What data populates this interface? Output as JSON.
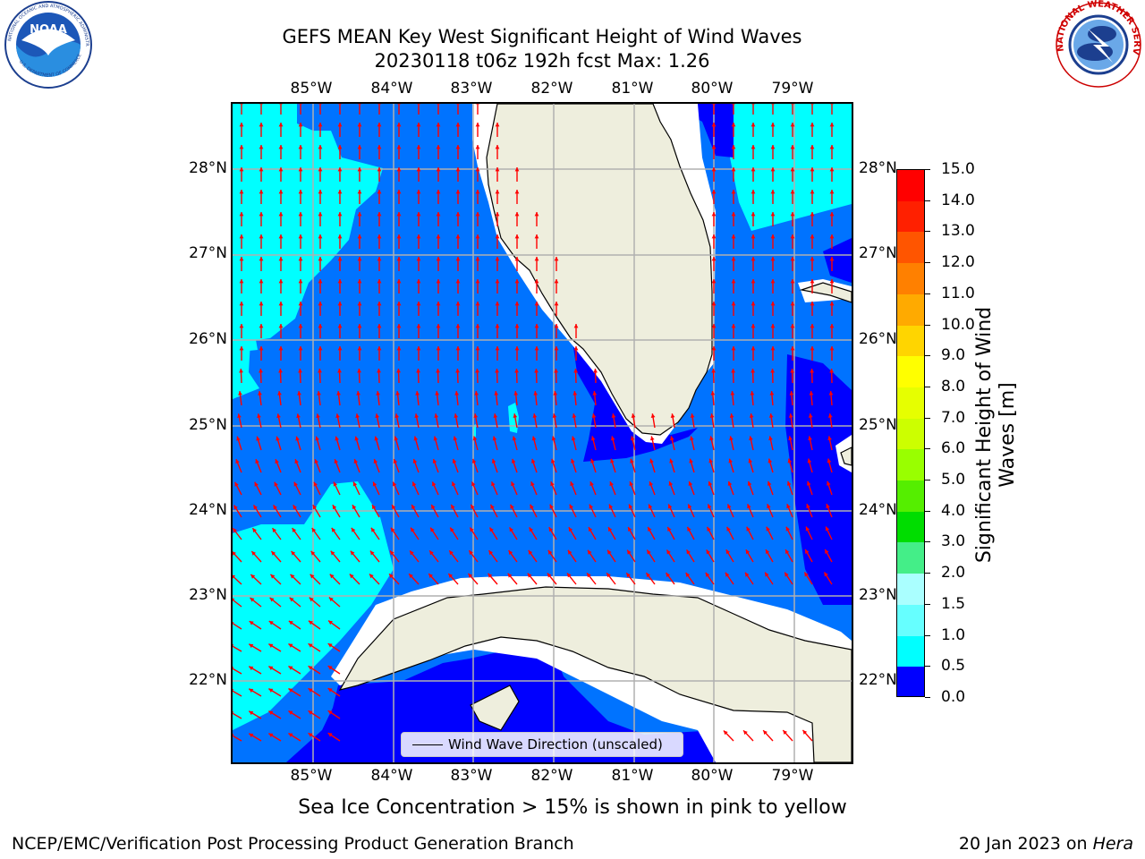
{
  "title": {
    "line1": "GEFS MEAN Key West Significant Height of Wind Waves",
    "line2": "20230118 t06z 192h fcst   Max: 1.26"
  },
  "map": {
    "lon_labels": [
      "85°W",
      "84°W",
      "83°W",
      "82°W",
      "81°W",
      "80°W",
      "79°W"
    ],
    "lat_labels": [
      "28°N",
      "27°N",
      "26°N",
      "25°N",
      "24°N",
      "23°N",
      "22°N"
    ],
    "legend_label": "Wind Wave Direction (unscaled)",
    "colors": {
      "band_0_0.5": "#0000ff",
      "band_0.5_1.0": "#0073ff",
      "band_1.0_1.5": "#00ffff",
      "land": "#eeeedd",
      "arrow": "#ff0000",
      "grid": "#b0b0b0"
    }
  },
  "colorbar": {
    "title_line1": "Significant Height of Wind",
    "title_line2": "Waves [m]",
    "ticks": [
      "15.0",
      "14.0",
      "13.0",
      "12.0",
      "11.0",
      "10.0",
      "9.0",
      "8.0",
      "7.0",
      "6.0",
      "5.0",
      "4.0",
      "3.0",
      "2.0",
      "1.5",
      "1.0",
      "0.5",
      "0.0"
    ],
    "colors": [
      "#ff0000",
      "#ff2000",
      "#ff5500",
      "#ff8000",
      "#ffaa00",
      "#ffd500",
      "#ffff00",
      "#e6ff00",
      "#ccff00",
      "#99ff00",
      "#55ee00",
      "#00dd00",
      "#44ee88",
      "#aaffff",
      "#66ffff",
      "#00ffff",
      "#0073ff",
      "#0000ff"
    ]
  },
  "caption": "Sea Ice Concentration > 15% is shown in pink to yellow",
  "footer": {
    "left": "NCEP/EMC/Verification Post Processing Product Generation Branch",
    "right_prefix": "20 Jan 2023 on ",
    "right_host": "Hera"
  },
  "logos": {
    "noaa_text": "NOAA",
    "noaa_ring_top": "NATIONAL OCEANIC AND ATMOSPHERIC ADMINISTRATION",
    "noaa_ring_bottom": "U.S. DEPARTMENT OF COMMERCE",
    "nws_ring": "NATIONAL WEATHER SERVICE"
  }
}
